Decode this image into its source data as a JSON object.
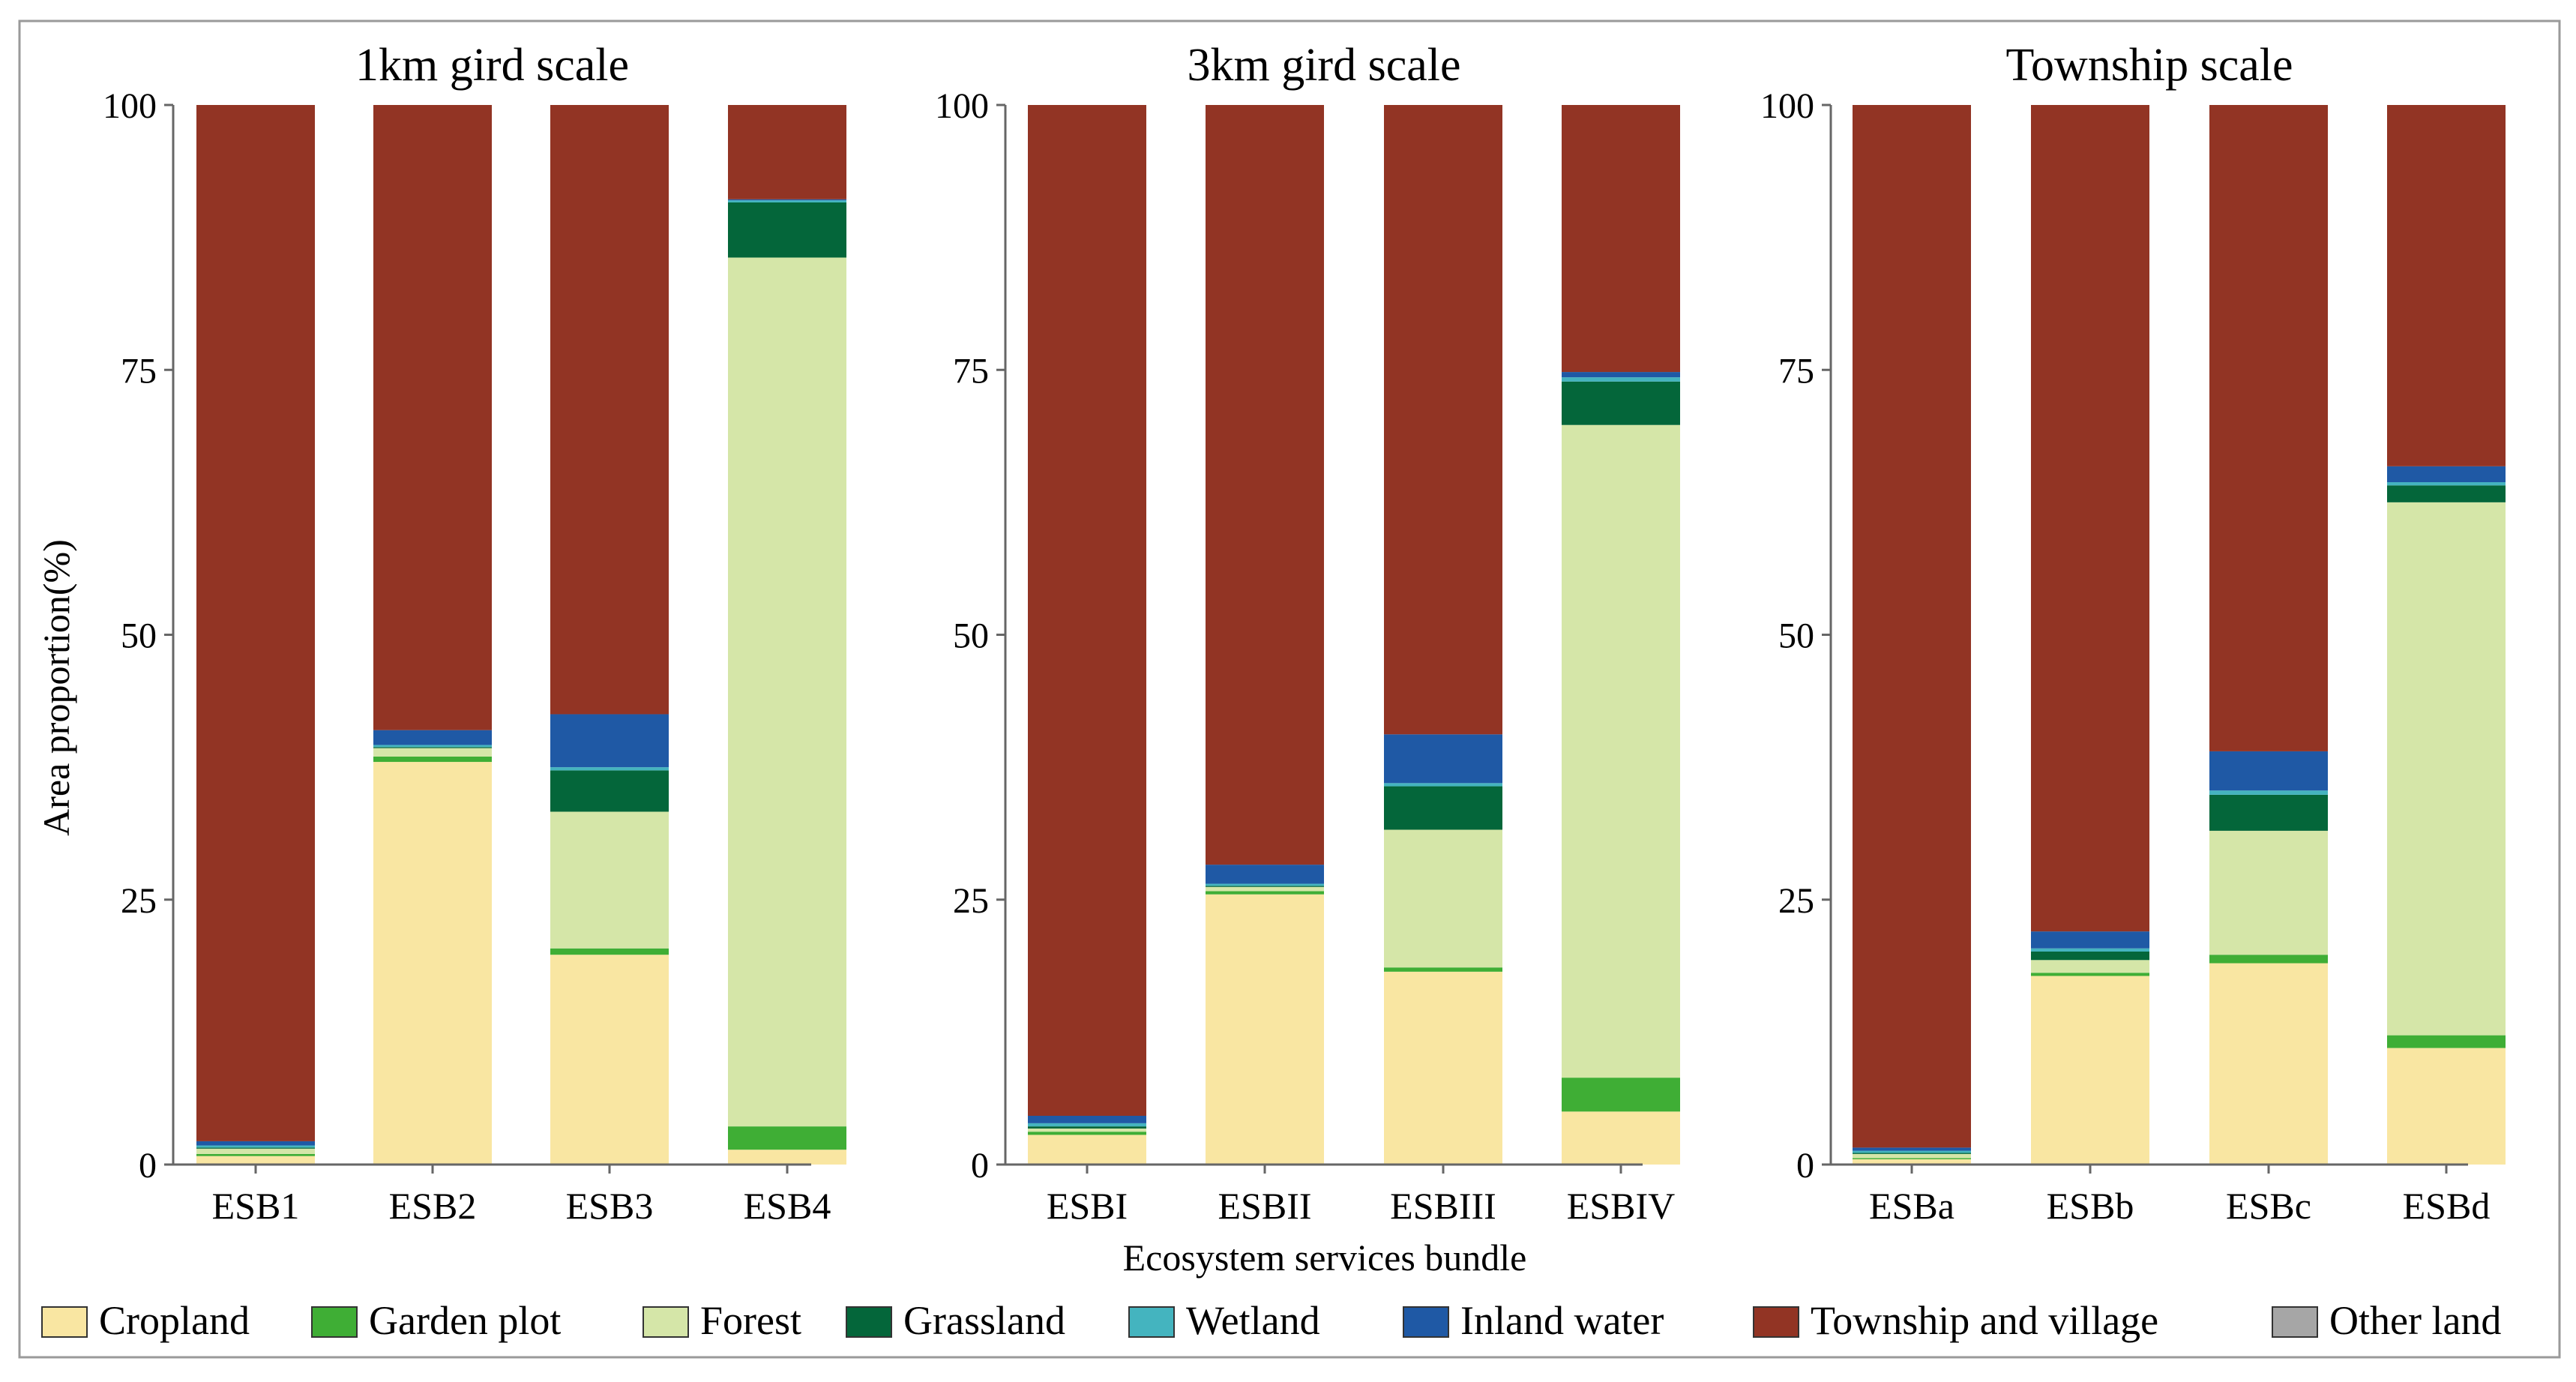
{
  "chart_data": {
    "type": "bar",
    "stacked": true,
    "ylabel": "Area proportion(%)",
    "xlabel": "Ecosystem services bundle",
    "ylim": [
      0,
      100
    ],
    "yticks": [
      0,
      25,
      50,
      75,
      100
    ],
    "legend_position": "bottom",
    "series": [
      {
        "name": "Cropland",
        "color": "#f9e6a2"
      },
      {
        "name": "Garden plot",
        "color": "#3fae35"
      },
      {
        "name": "Forest",
        "color": "#d5e6a8"
      },
      {
        "name": "Grassland",
        "color": "#04663a"
      },
      {
        "name": "Wetland",
        "color": "#44b4bf"
      },
      {
        "name": "Inland water",
        "color": "#1f59a5"
      },
      {
        "name": "Township and village",
        "color": "#923424"
      },
      {
        "name": "Other land",
        "color": "#a6a6a6"
      }
    ],
    "panels": [
      {
        "title": "1km gird scale",
        "categories": [
          "ESB1",
          "ESB2",
          "ESB3",
          "ESB4"
        ],
        "values": [
          [
            0.8,
            0.2,
            0.5,
            0.1,
            0.2,
            0.4,
            97.8,
            0.0
          ],
          [
            38.0,
            0.5,
            0.8,
            0.1,
            0.2,
            1.4,
            59.0,
            0.0
          ],
          [
            19.8,
            0.6,
            12.9,
            3.9,
            0.3,
            5.0,
            57.5,
            0.0
          ],
          [
            1.4,
            2.2,
            82.0,
            5.2,
            0.2,
            0.1,
            8.9,
            0.0
          ]
        ]
      },
      {
        "title": "3km gird scale",
        "categories": [
          "ESBI",
          "ESBII",
          "ESBIII",
          "ESBIV"
        ],
        "values": [
          [
            2.8,
            0.3,
            0.3,
            0.2,
            0.3,
            0.7,
            95.4,
            0.0
          ],
          [
            25.5,
            0.3,
            0.4,
            0.1,
            0.2,
            1.8,
            71.7,
            0.0
          ],
          [
            18.2,
            0.4,
            13.0,
            4.1,
            0.3,
            4.6,
            59.4,
            0.0
          ],
          [
            5.0,
            3.2,
            61.6,
            4.1,
            0.4,
            0.5,
            25.2,
            0.0
          ]
        ]
      },
      {
        "title": "Township scale",
        "categories": [
          "ESBa",
          "ESBb",
          "ESBc",
          "ESBd"
        ],
        "values": [
          [
            0.5,
            0.1,
            0.4,
            0.1,
            0.2,
            0.3,
            98.4,
            0.0
          ],
          [
            17.8,
            0.3,
            1.2,
            0.8,
            0.3,
            1.6,
            78.0,
            0.0
          ],
          [
            19.0,
            0.8,
            11.7,
            3.4,
            0.4,
            3.7,
            61.0,
            0.0
          ],
          [
            11.0,
            1.2,
            50.3,
            1.6,
            0.3,
            1.5,
            34.1,
            0.0
          ]
        ]
      }
    ]
  }
}
